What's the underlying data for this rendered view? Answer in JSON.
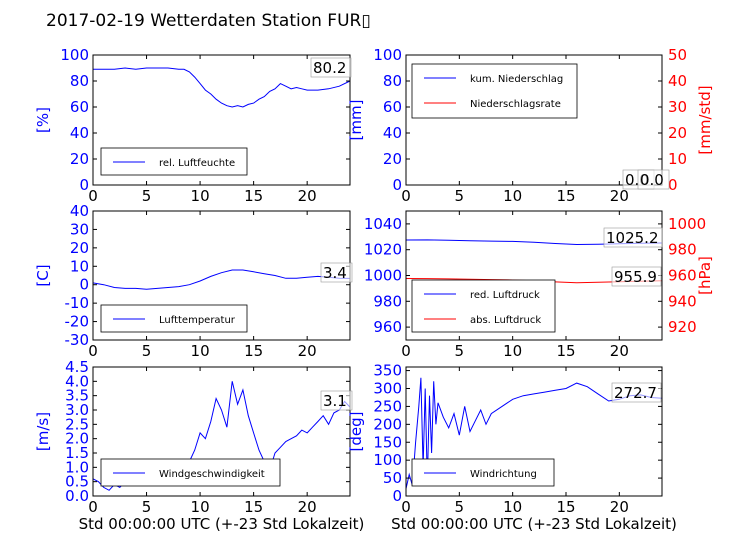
{
  "title": "2017-02-19 Wetterdaten Station FUR▯",
  "colors": {
    "left": "#0000ff",
    "right": "#ff0000",
    "frame": "#000000"
  },
  "chart_data": [
    {
      "type": "line",
      "id": "humidity",
      "ylabel": "[%]",
      "ylim": [
        0,
        100
      ],
      "yticks": [
        0,
        20,
        40,
        60,
        80,
        100
      ],
      "xlim": [
        0,
        24
      ],
      "xticks": [
        0,
        5,
        10,
        15,
        20
      ],
      "xlabel": "",
      "series": [
        {
          "name": "rel. Luftfeuchte",
          "axis": "left",
          "x": [
            0,
            1,
            2,
            3,
            4,
            5,
            6,
            7,
            8,
            8.5,
            9,
            9.5,
            10,
            10.5,
            11,
            11.5,
            12,
            12.5,
            13,
            13.5,
            14,
            14.5,
            15,
            15.5,
            16,
            16.5,
            17,
            17.5,
            18,
            18.5,
            19,
            19.5,
            20,
            21,
            22,
            23,
            24
          ],
          "y": [
            89,
            89,
            89,
            90,
            89,
            90,
            90,
            90,
            89,
            89,
            87,
            83,
            78,
            73,
            70,
            66,
            63,
            61,
            60,
            61,
            60,
            62,
            63,
            66,
            68,
            72,
            74,
            78,
            76,
            74,
            75,
            74,
            73,
            73,
            74,
            76,
            80
          ]
        }
      ],
      "annotations": [
        "80.2"
      ],
      "legend": {
        "loc": "lower-left",
        "entries": [
          "rel. Luftfeuchte"
        ]
      }
    },
    {
      "type": "line",
      "id": "precip",
      "ylabel": "[mm]",
      "ylim": [
        0,
        100
      ],
      "yticks": [
        0,
        20,
        40,
        60,
        80,
        100
      ],
      "y2label": "[mm/std]",
      "y2lim": [
        0,
        50
      ],
      "y2ticks": [
        0,
        10,
        20,
        30,
        40,
        50
      ],
      "xlim": [
        0,
        24
      ],
      "xticks": [
        0,
        5,
        10,
        15,
        20
      ],
      "xlabel": "",
      "series": [
        {
          "name": "kum. Niederschlag",
          "axis": "left",
          "x": [
            0,
            24
          ],
          "y": [
            0,
            0
          ]
        },
        {
          "name": "Niederschlagsrate",
          "axis": "right",
          "x": [
            0,
            24
          ],
          "y": [
            0,
            0
          ]
        }
      ],
      "annotations": [
        "0.0",
        "0.0"
      ],
      "legend": {
        "loc": "upper-left",
        "entries": [
          "kum. Niederschlag",
          "Niederschlagsrate"
        ]
      }
    },
    {
      "type": "line",
      "id": "temperature",
      "ylabel": "[C]",
      "ylim": [
        -30,
        40
      ],
      "yticks": [
        -30,
        -20,
        -10,
        0,
        10,
        20,
        30,
        40
      ],
      "xlim": [
        0,
        24
      ],
      "xticks": [
        0,
        5,
        10,
        15,
        20
      ],
      "xlabel": "",
      "series": [
        {
          "name": "Lufttemperatur",
          "axis": "left",
          "x": [
            0,
            1,
            2,
            3,
            4,
            5,
            6,
            7,
            8,
            9,
            10,
            11,
            12,
            13,
            14,
            15,
            16,
            17,
            18,
            19,
            20,
            21,
            22,
            23,
            24
          ],
          "y": [
            1,
            0,
            -1.5,
            -2,
            -2,
            -2.5,
            -2,
            -1.5,
            -1,
            0,
            2,
            4.5,
            6.5,
            8,
            8,
            7,
            6,
            5,
            3.5,
            3.5,
            4,
            4.5,
            4,
            3.5,
            3.4
          ]
        }
      ],
      "annotations": [
        "3.4"
      ],
      "legend": {
        "loc": "lower-left",
        "entries": [
          "Lufttemperatur"
        ]
      }
    },
    {
      "type": "line",
      "id": "pressure",
      "ylabel": "",
      "ylim": [
        950,
        1050
      ],
      "yticks": [
        960,
        980,
        1000,
        1020,
        1040
      ],
      "y2label": "[hPa]",
      "y2lim": [
        910,
        1010
      ],
      "y2ticks": [
        920,
        940,
        960,
        980,
        1000
      ],
      "xlim": [
        0,
        24
      ],
      "xticks": [
        0,
        5,
        10,
        15,
        20
      ],
      "xlabel": "",
      "series": [
        {
          "name": "red. Luftdruck",
          "axis": "left",
          "x": [
            0,
            2,
            4,
            6,
            8,
            10,
            12,
            14,
            16,
            18,
            20,
            22,
            24
          ],
          "y": [
            1027.5,
            1027.6,
            1027.3,
            1027,
            1026.7,
            1026.4,
            1025.8,
            1024.8,
            1024,
            1024.2,
            1024.6,
            1025,
            1025.2
          ]
        },
        {
          "name": "abs. Luftdruck",
          "axis": "right",
          "x": [
            0,
            2,
            4,
            6,
            8,
            10,
            12,
            14,
            16,
            18,
            20,
            22,
            24
          ],
          "y": [
            957.7,
            957.6,
            957.4,
            957.1,
            956.8,
            956.5,
            955.9,
            955,
            954.4,
            954.7,
            955.2,
            955.6,
            955.9
          ]
        }
      ],
      "annotations": [
        "1025.2",
        "955.9"
      ],
      "legend": {
        "loc": "lower-left",
        "entries": [
          "red. Luftdruck",
          "abs. Luftdruck"
        ]
      }
    },
    {
      "type": "line",
      "id": "windspeed",
      "ylabel": "[m/s]",
      "ylim": [
        0,
        4.5
      ],
      "yticks": [
        0.0,
        0.5,
        1.0,
        1.5,
        2.0,
        2.5,
        3.0,
        3.5,
        4.0,
        4.5
      ],
      "xlim": [
        0,
        24
      ],
      "xticks": [
        0,
        5,
        10,
        15,
        20
      ],
      "xlabel": "Std 00:00:00 UTC (+-23 Std Lokalzeit)",
      "series": [
        {
          "name": "Windgeschwindigkeit",
          "axis": "left",
          "x": [
            0,
            0.5,
            1,
            1.5,
            2,
            2.5,
            3,
            3.5,
            4,
            4.5,
            5,
            5.5,
            6,
            6.5,
            7,
            7.5,
            8,
            8.5,
            9,
            9.5,
            10,
            10.5,
            11,
            11.5,
            12,
            12.5,
            13,
            13.5,
            14,
            14.5,
            15,
            15.5,
            16,
            16.5,
            17,
            17.5,
            18,
            18.5,
            19,
            19.5,
            20,
            20.5,
            21,
            21.5,
            22,
            22.5,
            23,
            23.5,
            24
          ],
          "y": [
            0.6,
            0.5,
            0.3,
            0.2,
            0.4,
            0.3,
            0.5,
            0.7,
            0.6,
            0.4,
            0.8,
            0.6,
            0.9,
            0.5,
            0.7,
            0.6,
            0.5,
            0.9,
            1.2,
            1.6,
            2.2,
            2.0,
            2.6,
            3.4,
            3.0,
            2.4,
            4.0,
            3.2,
            3.7,
            2.8,
            2.2,
            1.6,
            1.2,
            0.9,
            1.5,
            1.7,
            1.9,
            2.0,
            2.1,
            2.3,
            2.2,
            2.4,
            2.6,
            2.8,
            2.5,
            2.9,
            3.0,
            3.3,
            3.1
          ]
        }
      ],
      "annotations": [
        "3.1"
      ],
      "legend": {
        "loc": "lower-left",
        "entries": [
          "Windgeschwindigkeit"
        ]
      }
    },
    {
      "type": "line",
      "id": "winddir",
      "ylabel": "[deg]",
      "ylim": [
        0,
        360
      ],
      "yticks": [
        0,
        50,
        100,
        150,
        200,
        250,
        300,
        350
      ],
      "xlim": [
        0,
        24
      ],
      "xticks": [
        0,
        5,
        10,
        15,
        20
      ],
      "xlabel": "Std 00:00:00 UTC (+-23 Std Lokalzeit)",
      "series": [
        {
          "name": "Windrichtung",
          "axis": "left",
          "x": [
            0,
            0.3,
            0.6,
            0.9,
            1.2,
            1.4,
            1.6,
            1.8,
            2.0,
            2.2,
            2.4,
            2.6,
            2.8,
            3.0,
            3.5,
            4,
            4.5,
            5,
            5.5,
            6,
            6.5,
            7,
            7.5,
            8,
            9,
            10,
            11,
            12,
            13,
            14,
            15,
            16,
            17,
            18,
            19,
            20,
            21,
            22,
            23,
            24
          ],
          "y": [
            20,
            60,
            30,
            150,
            250,
            330,
            80,
            300,
            40,
            280,
            120,
            320,
            200,
            260,
            220,
            190,
            230,
            170,
            250,
            180,
            210,
            240,
            200,
            230,
            250,
            270,
            280,
            285,
            290,
            295,
            300,
            315,
            305,
            285,
            265,
            270,
            280,
            282,
            275,
            272.7
          ]
        }
      ],
      "annotations": [
        "272.7"
      ],
      "legend": {
        "loc": "lower-left",
        "entries": [
          "Windrichtung"
        ]
      }
    }
  ]
}
